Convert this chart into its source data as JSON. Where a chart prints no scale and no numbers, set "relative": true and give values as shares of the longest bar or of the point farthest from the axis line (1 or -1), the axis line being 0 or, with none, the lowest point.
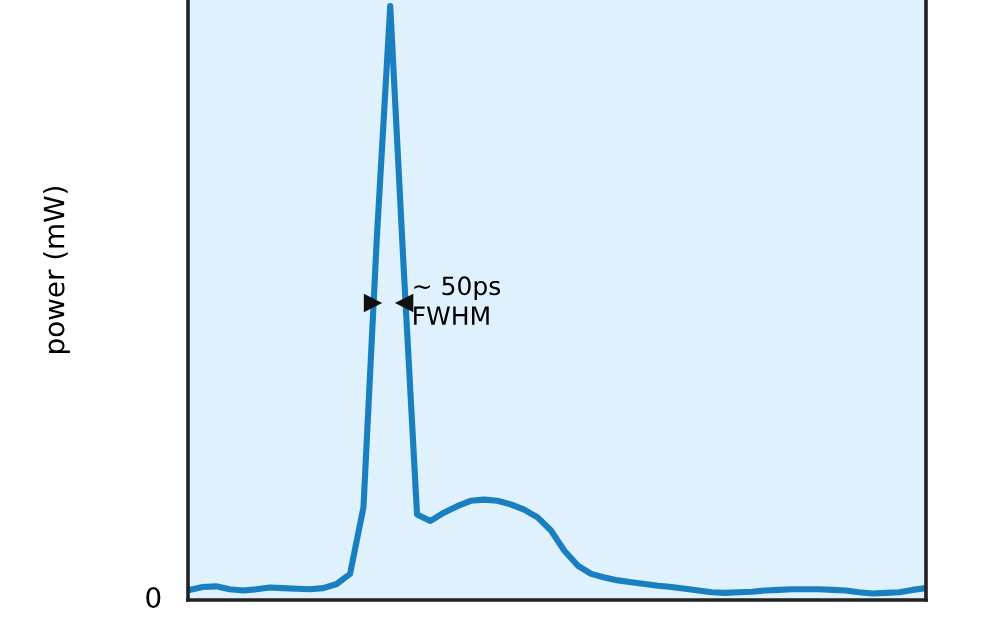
{
  "chart_data": {
    "type": "line",
    "ylabel": "power (mW)",
    "relative": true,
    "color": "#1a7fc0",
    "categories": [
      null,
      null,
      null,
      null,
      null,
      null,
      null,
      null,
      null,
      null,
      null,
      null,
      null,
      null,
      null,
      null,
      null,
      null,
      null,
      null,
      null,
      null,
      null,
      null,
      null,
      null,
      null,
      null,
      null,
      null,
      null,
      null,
      null,
      null,
      null,
      null,
      null,
      null,
      null,
      null,
      null,
      null,
      null,
      null,
      null,
      null,
      null,
      null,
      null,
      null,
      null,
      null,
      null,
      null,
      null,
      null
    ],
    "values": [
      0.017,
      0.022,
      0.023,
      0.018,
      0.016,
      0.018,
      0.021,
      0.02,
      0.019,
      0.018,
      0.02,
      0.027,
      0.044,
      0.156,
      0.61,
      1,
      0.56,
      0.144,
      0.133,
      0.147,
      0.158,
      0.167,
      0.169,
      0.167,
      0.161,
      0.152,
      0.139,
      0.117,
      0.083,
      0.058,
      0.044,
      0.038,
      0.033,
      0.03,
      0.027,
      0.024,
      0.022,
      0.019,
      0.016,
      0.013,
      0.012,
      0.013,
      0.014,
      0.016,
      0.017,
      0.018,
      0.018,
      0.018,
      0.017,
      0.016,
      0.013,
      0.011,
      0.012,
      0.013,
      0.017,
      0.02
    ],
    "annotations": [
      "0",
      "~ 50ps\nFWHM"
    ]
  }
}
